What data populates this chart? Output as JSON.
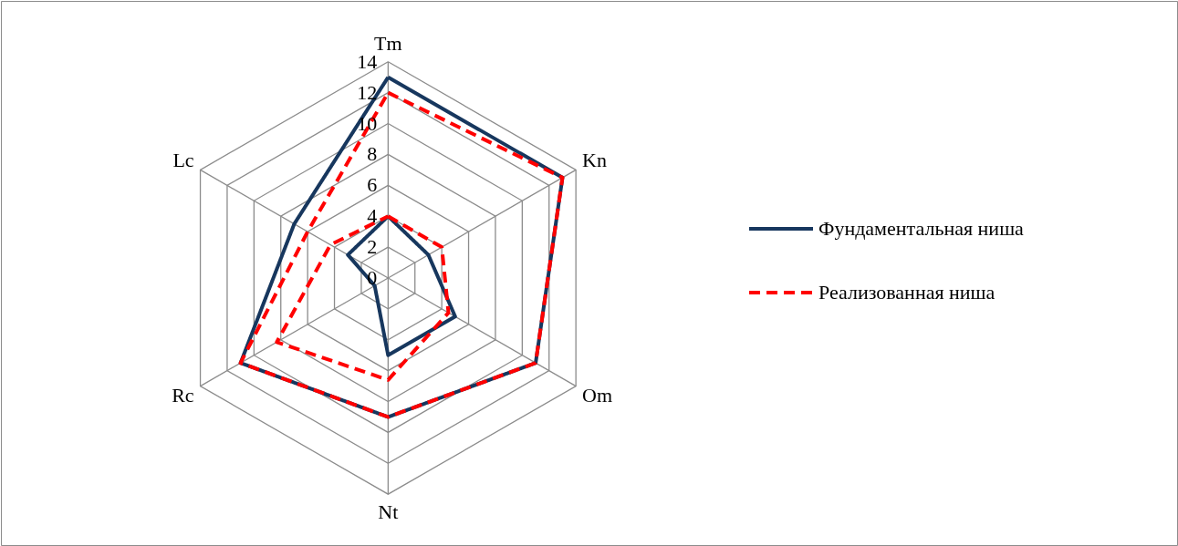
{
  "chart_data": {
    "type": "radar",
    "categories": [
      "Tm",
      "Kn",
      "Om",
      "Nt",
      "Rc",
      "Lc"
    ],
    "series": [
      {
        "name": "Фундаментальная ниша",
        "color": "#17375e",
        "line_style": "solid",
        "values": [
          13,
          13,
          11,
          9,
          11,
          7
        ]
      },
      {
        "color": "#17375e",
        "line_style": "solid",
        "values": [
          4,
          3,
          5,
          5,
          1,
          3
        ]
      },
      {
        "name": "Реализованная ниша",
        "color": "#ff0000",
        "line_style": "dashed",
        "values": [
          12,
          13,
          11,
          9,
          11,
          6
        ]
      },
      {
        "color": "#ff0000",
        "line_style": "dashed",
        "values": [
          4,
          4,
          4.5,
          6.6,
          8.3,
          4.3
        ]
      }
    ],
    "ylim": [
      0,
      14
    ],
    "yticks": [
      0,
      2,
      4,
      6,
      8,
      10,
      12,
      14
    ],
    "grid": true,
    "legend": "right",
    "marker": "none"
  }
}
